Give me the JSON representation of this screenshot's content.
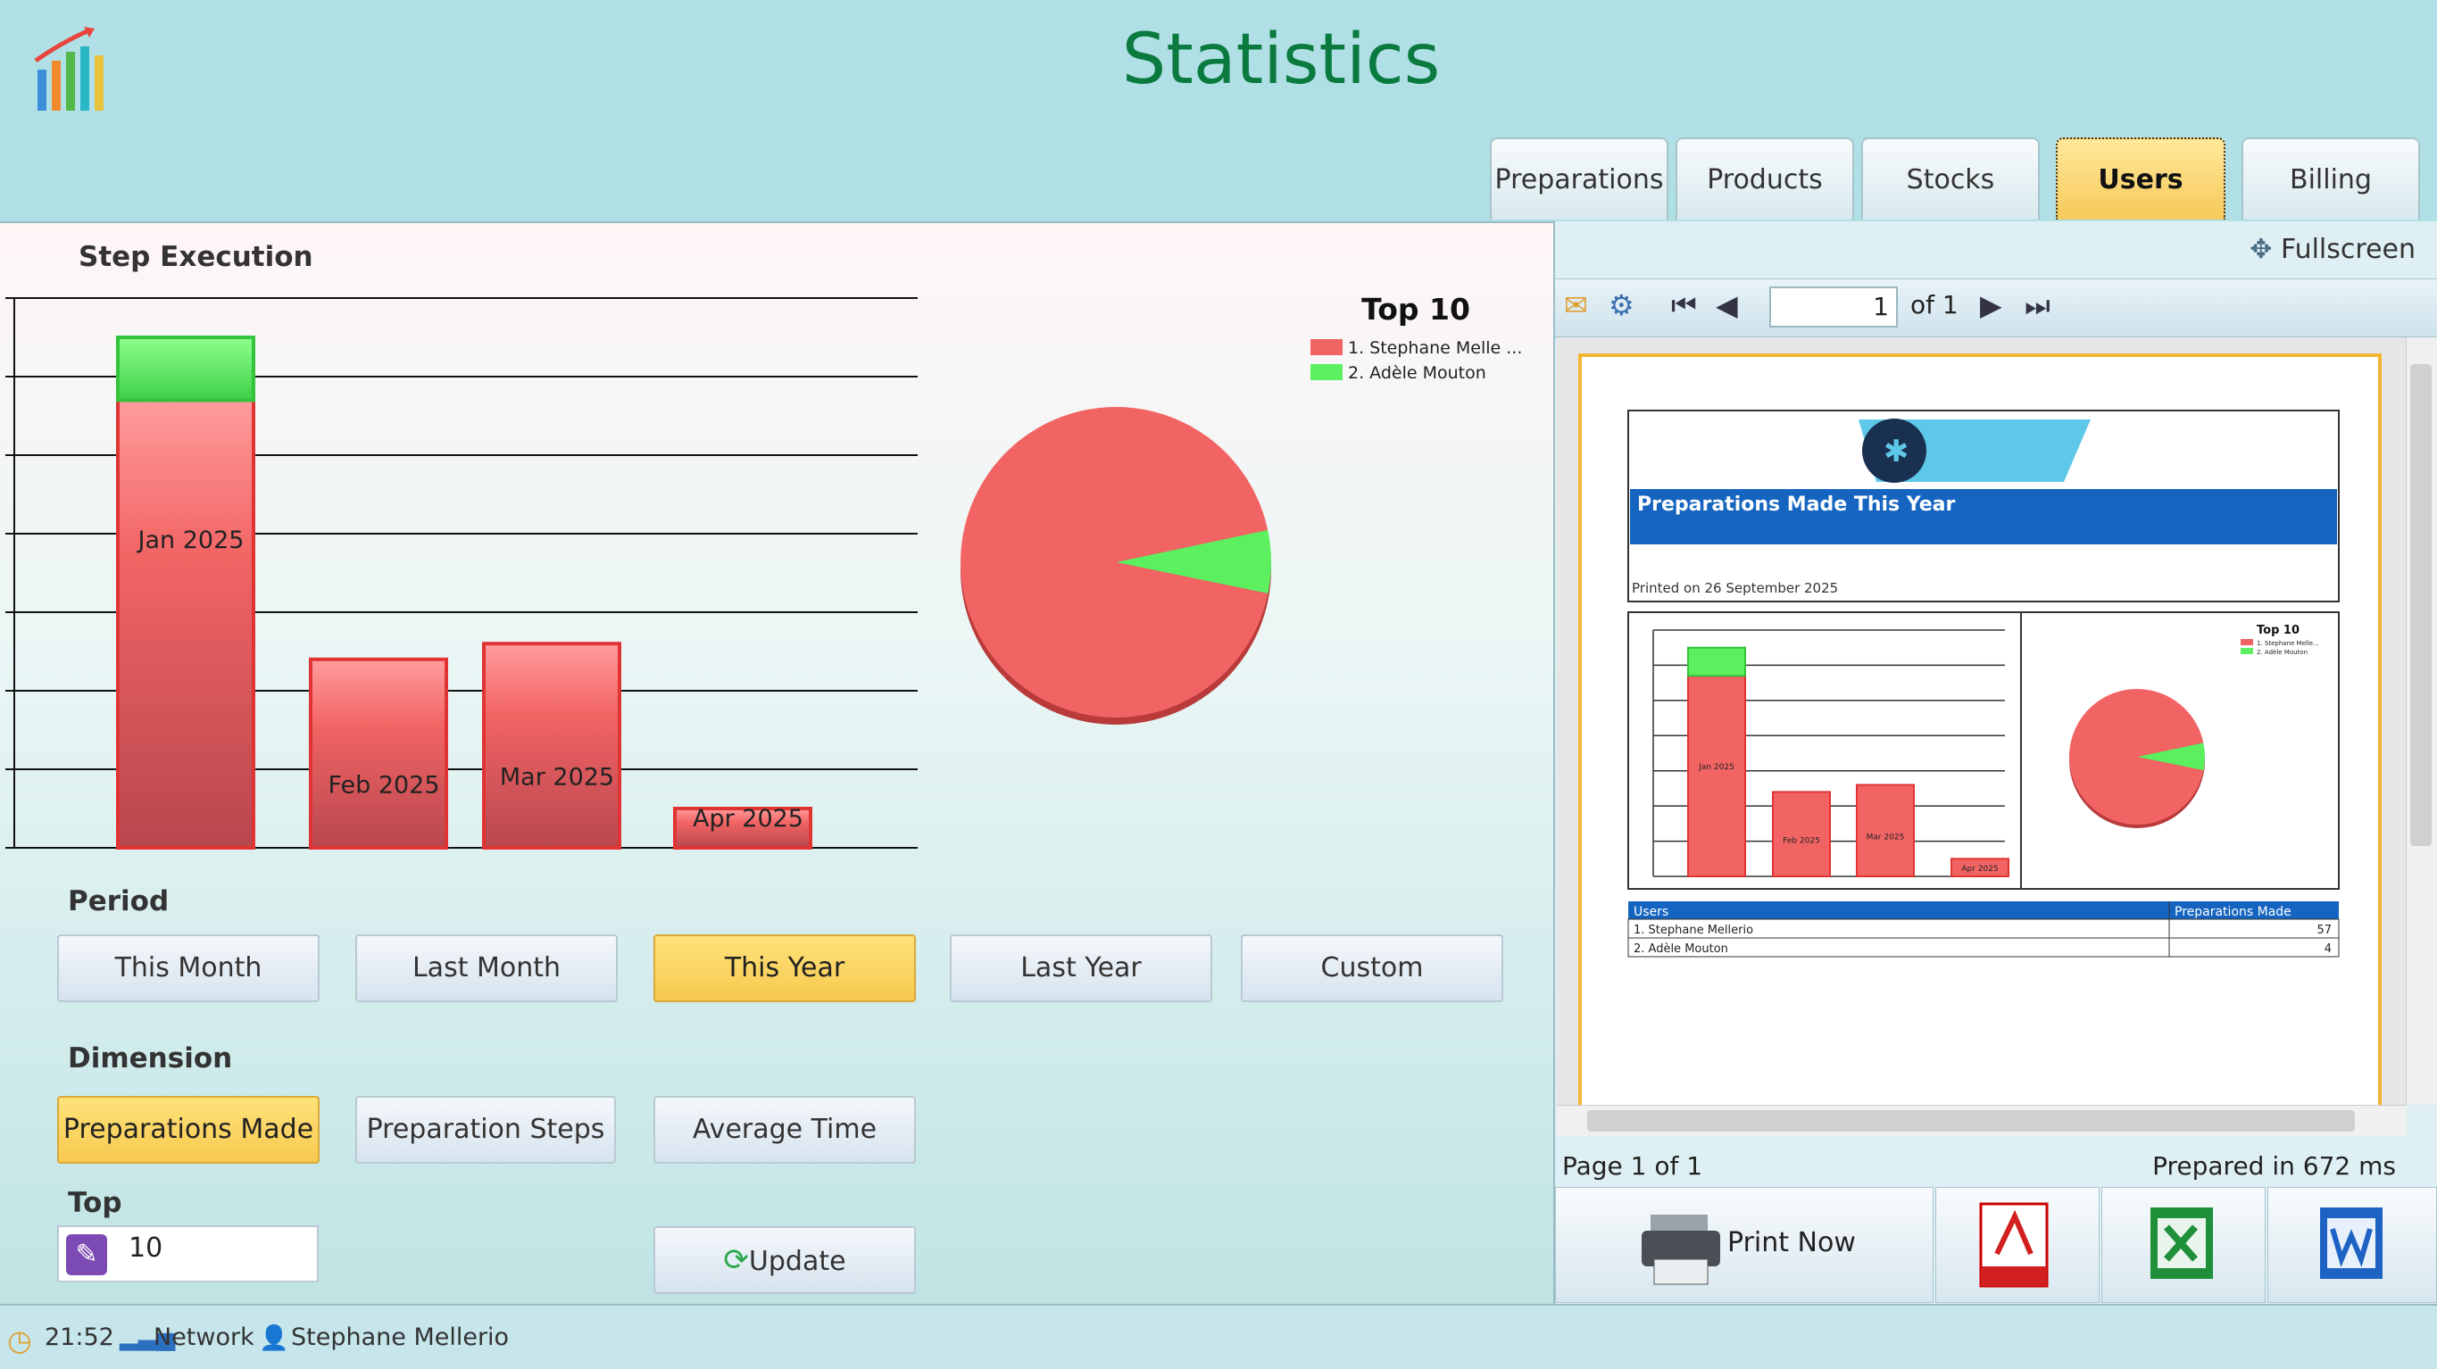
{
  "header": {
    "title": "Statistics",
    "tabs": [
      {
        "label": "Preparations",
        "active": false
      },
      {
        "label": "Products",
        "active": false
      },
      {
        "label": "Stocks",
        "active": false
      },
      {
        "label": "Users",
        "active": true
      },
      {
        "label": "Billing",
        "active": false
      }
    ]
  },
  "left": {
    "section_title": "Step Execution",
    "period_label": "Period",
    "period_buttons": [
      {
        "label": "This Month",
        "selected": false
      },
      {
        "label": "Last Month",
        "selected": false
      },
      {
        "label": "This Year",
        "selected": true
      },
      {
        "label": "Last Year",
        "selected": false
      },
      {
        "label": "Custom",
        "selected": false
      }
    ],
    "dimension_label": "Dimension",
    "dimension_buttons": [
      {
        "label": "Preparations Made",
        "selected": true
      },
      {
        "label": "Preparation Steps",
        "selected": false
      },
      {
        "label": "Average Time",
        "selected": false
      }
    ],
    "top_label": "Top",
    "top_value": "10",
    "update_label": "Update"
  },
  "chart_data": [
    {
      "type": "bar",
      "categories": [
        "Jan 2025",
        "Feb 2025",
        "Mar 2025",
        "Apr 2025"
      ],
      "series": [
        {
          "values": [
            57,
            24,
            26,
            5
          ],
          "color": "#f26464"
        },
        {
          "values": [
            8,
            0,
            0,
            0
          ],
          "color": "#5cf060"
        }
      ],
      "ylim": [
        0,
        70
      ],
      "grid": true
    },
    {
      "type": "pie",
      "title": "Top 10",
      "labels": [
        "1. Stephane Melle ...",
        "2. Adèle Mouton"
      ],
      "values": [
        57,
        4
      ],
      "colors": [
        "#f26464",
        "#5cf060"
      ],
      "legend": "top-right"
    }
  ],
  "viewer": {
    "fullscreen_label": "Fullscreen",
    "page_input": "1",
    "page_of": "of 1",
    "status_left": "Page 1 of 1",
    "status_right": "Prepared in 672 ms",
    "print_label": "Print Now",
    "report": {
      "heading": "Preparations Made This Year",
      "printed_on": "Printed on 26 September 2025",
      "table_headers": [
        "Users",
        "Preparations Made"
      ],
      "rows": [
        {
          "user": "1. Stephane Mellerio",
          "value": "57"
        },
        {
          "user": "2. Adèle Mouton",
          "value": "4"
        }
      ],
      "mini_labels": [
        "Jan 2025",
        "Feb 2025",
        "Mar 2025",
        "Apr 2025"
      ],
      "mini_legend_title": "Top 10",
      "mini_legend": [
        "1. Stephane Melle...",
        "2. Adèle Mouton"
      ]
    }
  },
  "statusbar": {
    "time": "21:52",
    "network": "Network",
    "user": "Stephane Mellerio"
  }
}
